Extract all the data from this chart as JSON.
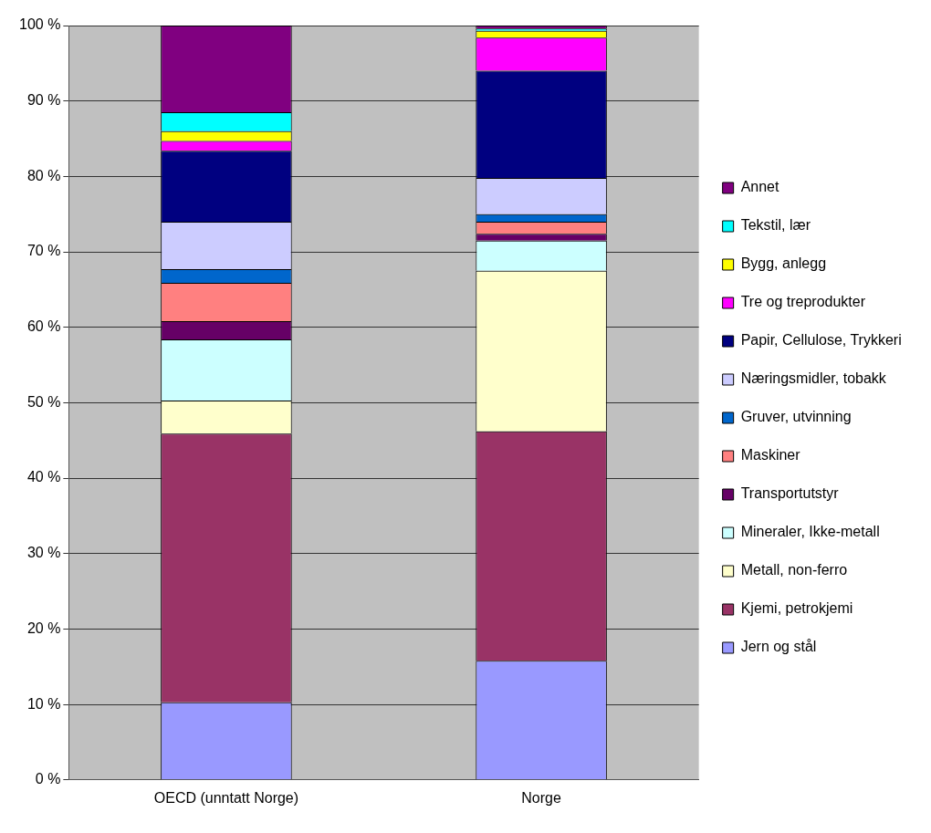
{
  "chart_data": {
    "type": "bar",
    "stacked": true,
    "categories": [
      "OECD (unntatt Norge)",
      "Norge"
    ],
    "series": [
      {
        "name": "Jern og stål",
        "color": "#9999ff",
        "values": [
          10.3,
          15.8
        ]
      },
      {
        "name": "Kjemi, petrokjemi",
        "color": "#993366",
        "values": [
          35.6,
          30.4
        ]
      },
      {
        "name": "Metall, non-ferro",
        "color": "#ffffcc",
        "values": [
          4.4,
          21.3
        ]
      },
      {
        "name": "Mineraler, Ikke-metall",
        "color": "#ccffff",
        "values": [
          8.1,
          4.0
        ]
      },
      {
        "name": "Transportutstyr",
        "color": "#660066",
        "values": [
          2.4,
          0.9
        ]
      },
      {
        "name": "Maskiner",
        "color": "#ff8080",
        "values": [
          5.1,
          1.6
        ]
      },
      {
        "name": "Gruver, utvinning",
        "color": "#0066cc",
        "values": [
          1.8,
          1.0
        ]
      },
      {
        "name": "Næringsmidler, tobakk",
        "color": "#ccccff",
        "values": [
          6.3,
          4.8
        ]
      },
      {
        "name": "Papir, Cellulose, Trykkeri",
        "color": "#000080",
        "values": [
          9.4,
          14.2
        ]
      },
      {
        "name": "Tre og treprodukter",
        "color": "#ff00ff",
        "values": [
          1.3,
          4.4
        ]
      },
      {
        "name": "Bygg, anlegg",
        "color": "#ffff00",
        "values": [
          1.3,
          0.9
        ]
      },
      {
        "name": "Tekstil, lær",
        "color": "#00ffff",
        "values": [
          2.5,
          0.3
        ]
      },
      {
        "name": "Annet",
        "color": "#800080",
        "values": [
          11.5,
          0.4
        ]
      }
    ],
    "ylim": [
      0,
      100
    ],
    "yticks": [
      {
        "value": 0,
        "label": "0 %"
      },
      {
        "value": 10,
        "label": "10 %"
      },
      {
        "value": 20,
        "label": "20 %"
      },
      {
        "value": 30,
        "label": "30 %"
      },
      {
        "value": 40,
        "label": "40 %"
      },
      {
        "value": 50,
        "label": "50 %"
      },
      {
        "value": 60,
        "label": "60 %"
      },
      {
        "value": 70,
        "label": "70 %"
      },
      {
        "value": 80,
        "label": "80 %"
      },
      {
        "value": 90,
        "label": "90 %"
      },
      {
        "value": 100,
        "label": "100 %"
      }
    ],
    "grid": "y",
    "legend": "right"
  }
}
